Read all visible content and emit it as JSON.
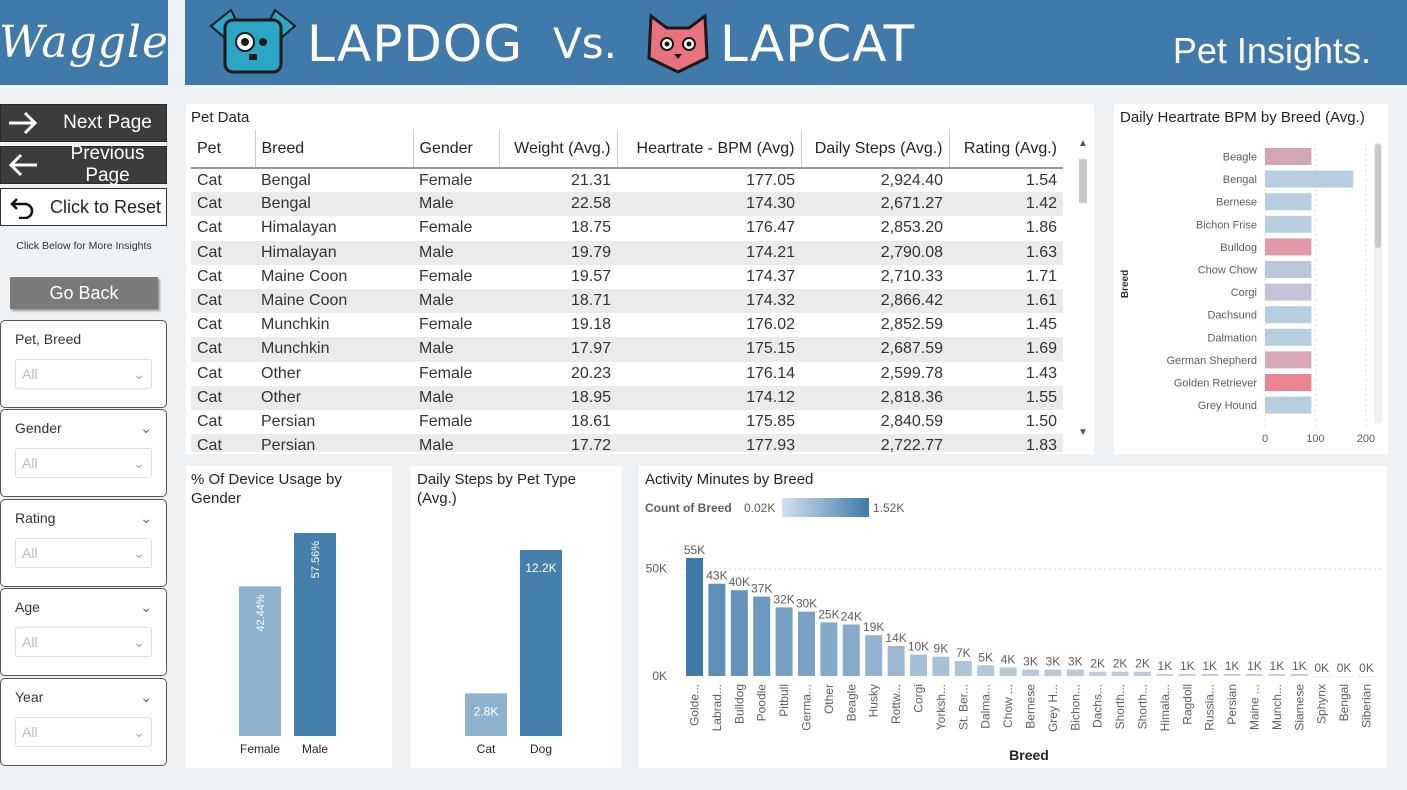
{
  "header": {
    "logo_text": "Waggle",
    "brand_dog": "LAPDOG",
    "vs": "Vs.",
    "brand_cat": "LAPCAT",
    "page_title": "Pet Insights.",
    "colors": {
      "banner": "#3f7aaa",
      "dog_icon": "#2ba6c4",
      "cat_icon": "#e8737e"
    }
  },
  "nav": {
    "next": "Next Page",
    "previous": "Previous Page",
    "reset": "Click to Reset",
    "hint": "Click Below for More Insights",
    "go_back": "Go Back"
  },
  "slicers": [
    {
      "title": "Pet, Breed",
      "value": "All"
    },
    {
      "title": "Gender",
      "value": "All"
    },
    {
      "title": "Rating",
      "value": "All"
    },
    {
      "title": "Age",
      "value": "All"
    },
    {
      "title": "Year",
      "value": "All"
    }
  ],
  "table": {
    "title": "Pet Data",
    "columns": [
      "Pet",
      "Breed",
      "Gender",
      "Weight (Avg.)",
      "Heartrate - BPM (Avg)",
      "Daily Steps (Avg.)",
      "Rating (Avg.)"
    ],
    "rows": [
      [
        "Cat",
        "Bengal",
        "Female",
        "21.31",
        "177.05",
        "2,924.40",
        "1.54"
      ],
      [
        "Cat",
        "Bengal",
        "Male",
        "22.58",
        "174.30",
        "2,671.27",
        "1.42"
      ],
      [
        "Cat",
        "Himalayan",
        "Female",
        "18.75",
        "176.47",
        "2,853.20",
        "1.86"
      ],
      [
        "Cat",
        "Himalayan",
        "Male",
        "19.79",
        "174.21",
        "2,790.08",
        "1.63"
      ],
      [
        "Cat",
        "Maine Coon",
        "Female",
        "19.57",
        "174.37",
        "2,710.33",
        "1.71"
      ],
      [
        "Cat",
        "Maine Coon",
        "Male",
        "18.71",
        "174.32",
        "2,866.42",
        "1.61"
      ],
      [
        "Cat",
        "Munchkin",
        "Female",
        "19.18",
        "176.02",
        "2,852.59",
        "1.45"
      ],
      [
        "Cat",
        "Munchkin",
        "Male",
        "17.97",
        "175.15",
        "2,687.59",
        "1.69"
      ],
      [
        "Cat",
        "Other",
        "Female",
        "20.23",
        "176.14",
        "2,599.78",
        "1.43"
      ],
      [
        "Cat",
        "Other",
        "Male",
        "18.95",
        "174.12",
        "2,818.36",
        "1.55"
      ],
      [
        "Cat",
        "Persian",
        "Female",
        "18.61",
        "175.85",
        "2,840.59",
        "1.50"
      ],
      [
        "Cat",
        "Persian",
        "Male",
        "17.72",
        "177.93",
        "2,722.77",
        "1.83"
      ]
    ]
  },
  "chart_data": [
    {
      "type": "bar",
      "orientation": "horizontal",
      "title": "Daily Heartrate BPM by Breed (Avg.)",
      "ylabel": "Breed",
      "categories": [
        "Beagle",
        "Bengal",
        "Bernese",
        "Bichon Frise",
        "Bulldog",
        "Chow Chow",
        "Corgi",
        "Dachsund",
        "Dalmation",
        "German Shepherd",
        "Golden Retriever",
        "Grey Hound"
      ],
      "values": [
        92,
        175,
        92,
        92,
        92,
        92,
        92,
        92,
        92,
        92,
        92,
        92
      ],
      "colors": [
        "#d4a5b5",
        "#b7cde0",
        "#b7cde0",
        "#b7cde0",
        "#de9aa8",
        "#bac7da",
        "#c3c2d6",
        "#b7cde0",
        "#b7cde0",
        "#d9a8b7",
        "#ec8593",
        "#b7cde0"
      ],
      "xticks": [
        "0",
        "100",
        "200"
      ],
      "xlim": [
        0,
        220
      ]
    },
    {
      "type": "bar",
      "title": "% Of Device Usage by Gender",
      "categories": [
        "Female",
        "Male"
      ],
      "values": [
        42.44,
        57.56
      ],
      "labels": [
        "42.44%",
        "57.56%"
      ],
      "colors": [
        "#8eb2cd",
        "#4580ad"
      ]
    },
    {
      "type": "bar",
      "title": "Daily Steps by Pet Type (Avg.)",
      "categories": [
        "Cat",
        "Dog"
      ],
      "values": [
        2800,
        12200
      ],
      "labels": [
        "2.8K",
        "12.2K"
      ],
      "colors": [
        "#8eb2cd",
        "#4580ad"
      ]
    },
    {
      "type": "bar",
      "title": "Activity Minutes by Breed",
      "legend_title": "Count of Breed",
      "legend_min": "0.02K",
      "legend_max": "1.52K",
      "xlabel": "Breed",
      "yticks": [
        "0K",
        "50K"
      ],
      "ylim": [
        0,
        60000
      ],
      "categories": [
        "Golde...",
        "Labrad...",
        "Bulldog",
        "Poodle",
        "Pitbull",
        "Germa...",
        "Other",
        "Beagle",
        "Husky",
        "Rottw...",
        "Corgi",
        "Yorksh...",
        "St. Ber...",
        "Dalma...",
        "Chow ...",
        "Bernese",
        "Grey H...",
        "Bichon...",
        "Dachs...",
        "Shorth...",
        "Shorth...",
        "Himala...",
        "Ragdoll",
        "Russia...",
        "Persian",
        "Maine ...",
        "Munch...",
        "Siamese",
        "Sphynx",
        "Bengal",
        "Siberian"
      ],
      "values": [
        55000,
        43000,
        40000,
        37000,
        32000,
        30000,
        25000,
        24000,
        19000,
        14000,
        10000,
        9000,
        7000,
        5000,
        4000,
        3000,
        3000,
        3000,
        2000,
        2000,
        2000,
        1000,
        1000,
        1000,
        1000,
        1000,
        1000,
        1000,
        0,
        0,
        0
      ],
      "labels": [
        "55K",
        "43K",
        "40K",
        "37K",
        "32K",
        "30K",
        "25K",
        "24K",
        "19K",
        "14K",
        "10K",
        "9K",
        "7K",
        "5K",
        "4K",
        "3K",
        "3K",
        "3K",
        "2K",
        "2K",
        "2K",
        "1K",
        "1K",
        "1K",
        "1K",
        "1K",
        "1K",
        "1K",
        "0K",
        "0K",
        "0K"
      ],
      "colors": [
        "#3f7aaa",
        "#5d8fb9",
        "#6493bb",
        "#6b98be",
        "#779fc3",
        "#7ba2c5",
        "#85a9c9",
        "#87aac9",
        "#92b2ce",
        "#9db9d2",
        "#a6bfd6",
        "#a8c1d7",
        "#adc4d9",
        "#b2c7db",
        "#b4c9dc",
        "#b7cbdd",
        "#b7cbdd",
        "#b7cbdd",
        "#bacde0",
        "#bacde0",
        "#bacde0",
        "#bdcfe1",
        "#bdcfe1",
        "#bdcfe1",
        "#bdcfe1",
        "#bdcfe1",
        "#bdcfe1",
        "#bdcfe1",
        "#c0d1e2",
        "#c0d1e2",
        "#c0d1e2"
      ]
    }
  ]
}
